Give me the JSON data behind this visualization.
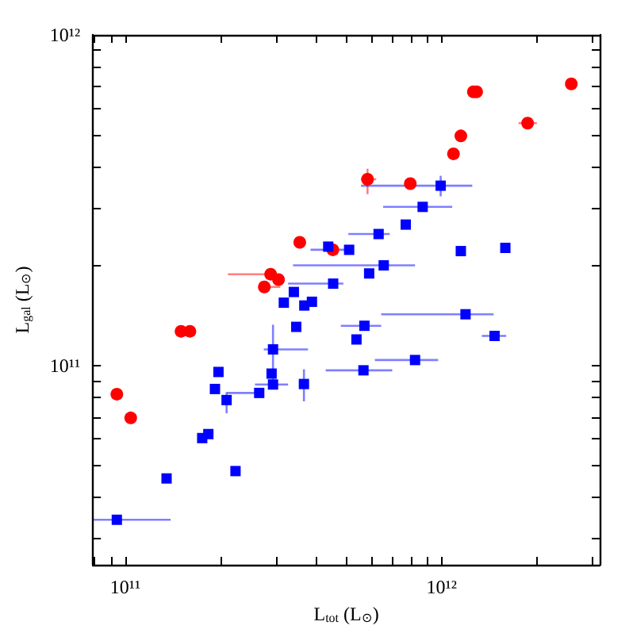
{
  "chart_data": {
    "type": "scatter",
    "xlabel": "L$_{tot}$ (L$_{⊙}$)",
    "ylabel": "L$_{gal}$ (L$_{⊙}$)",
    "log": "xy",
    "grid": false,
    "xlim": [
      79000000000.0,
      3160000000000.0
    ],
    "ylim": [
      25000000000.0,
      1000000000000.0
    ],
    "xticks": [
      {
        "value": 80000000000.0,
        "label": null
      },
      {
        "value": 90000000000.0,
        "label": null
      },
      {
        "value": 100000000000.0,
        "label": "10¹¹"
      },
      {
        "value": 200000000000.0,
        "label": null
      },
      {
        "value": 300000000000.0,
        "label": null
      },
      {
        "value": 400000000000.0,
        "label": null
      },
      {
        "value": 500000000000.0,
        "label": null
      },
      {
        "value": 600000000000.0,
        "label": null
      },
      {
        "value": 700000000000.0,
        "label": null
      },
      {
        "value": 800000000000.0,
        "label": null
      },
      {
        "value": 900000000000.0,
        "label": null
      },
      {
        "value": 1000000000000.0,
        "label": "10¹²"
      },
      {
        "value": 2000000000000.0,
        "label": null
      },
      {
        "value": 3000000000000.0,
        "label": null
      }
    ],
    "yticks": [
      {
        "value": 30000000000.0,
        "label": null
      },
      {
        "value": 40000000000.0,
        "label": null
      },
      {
        "value": 50000000000.0,
        "label": null
      },
      {
        "value": 60000000000.0,
        "label": null
      },
      {
        "value": 70000000000.0,
        "label": null
      },
      {
        "value": 80000000000.0,
        "label": null
      },
      {
        "value": 90000000000.0,
        "label": null
      },
      {
        "value": 100000000000.0,
        "label": "10¹¹"
      },
      {
        "value": 200000000000.0,
        "label": null
      },
      {
        "value": 300000000000.0,
        "label": null
      },
      {
        "value": 400000000000.0,
        "label": null
      },
      {
        "value": 500000000000.0,
        "label": null
      },
      {
        "value": 600000000000.0,
        "label": null
      },
      {
        "value": 700000000000.0,
        "label": null
      },
      {
        "value": 800000000000.0,
        "label": null
      },
      {
        "value": 900000000000.0,
        "label": null
      },
      {
        "value": 1000000000000.0,
        "label": "10¹²"
      }
    ],
    "series": [
      {
        "color": "#ff0000",
        "marker": "circle",
        "x": [
          94000000000.0,
          104000000000.0,
          150000000000.0,
          160000000000.0,
          275000000000.0,
          288000000000.0,
          305000000000.0,
          356000000000.0,
          453000000000.0,
          583000000000.0,
          796000000000.0,
          1090000000000.0,
          1150000000000.0,
          1260000000000.0,
          1290000000000.0,
          1870000000000.0,
          2570000000000.0
        ],
        "values": [
          82000000000.0,
          69500000000.0,
          127000000000.0,
          127000000000.0,
          173000000000.0,
          189000000000.0,
          182000000000.0,
          236000000000.0,
          224000000000.0,
          366000000000.0,
          355000000000.0,
          437000000000.0,
          495000000000.0,
          673000000000.0,
          673000000000.0,
          541000000000.0,
          711000000000.0
        ],
        "xerrors": [
          null,
          null,
          null,
          null,
          [
            275000000000.0,
            309000000000.0
          ],
          [
            211000000000.0,
            288000000000.0
          ],
          null,
          null,
          null,
          [
            556000000000.0,
            621000000000.0
          ],
          null,
          null,
          null,
          null,
          null,
          [
            1750000000000.0,
            2000000000000.0
          ],
          null
        ],
        "errors": [
          null,
          null,
          null,
          null,
          null,
          null,
          null,
          null,
          null,
          [
            330000000000.0,
            394000000000.0
          ],
          null,
          null,
          null,
          null,
          null,
          null,
          null
        ]
      },
      {
        "color": "#0000ff",
        "marker": "square",
        "x": [
          94000000000.0,
          135000000000.0,
          175000000000.0,
          183000000000.0,
          223000000000.0,
          192000000000.0,
          197000000000.0,
          209000000000.0,
          265000000000.0,
          293000000000.0,
          290000000000.0,
          293000000000.0,
          367000000000.0,
          347000000000.0,
          317000000000.0,
          341000000000.0,
          368000000000.0,
          389000000000.0,
          454000000000.0,
          538000000000.0,
          438000000000.0,
          510000000000.0,
          632000000000.0,
          770000000000.0,
          871000000000.0,
          993000000000.0,
          1150000000000.0,
          1590000000000.0,
          656000000000.0,
          590000000000.0,
          1190000000000.0,
          570000000000.0,
          1470000000000.0,
          824000000000.0,
          566000000000.0
        ],
        "values": [
          34200000000.0,
          45600000000.0,
          60400000000.0,
          62100000000.0,
          48000000000.0,
          85000000000.0,
          95700000000.0,
          78700000000.0,
          82700000000.0,
          87700000000.0,
          94600000000.0,
          112000000000.0,
          88000000000.0,
          131000000000.0,
          155000000000.0,
          167000000000.0,
          152000000000.0,
          156000000000.0,
          177000000000.0,
          120000000000.0,
          229000000000.0,
          224000000000.0,
          250000000000.0,
          267000000000.0,
          302000000000.0,
          350000000000.0,
          222000000000.0,
          227000000000.0,
          201000000000.0,
          190000000000.0,
          143000000000.0,
          132000000000.0,
          123000000000.0,
          104000000000.0,
          96800000000.0
        ],
        "xerrors": [
          [
            79000000000.0,
            139000000000.0
          ],
          null,
          null,
          null,
          null,
          null,
          null,
          null,
          [
            210000000000.0,
            265000000000.0
          ],
          [
            257000000000.0,
            327000000000.0
          ],
          null,
          [
            274000000000.0,
            378000000000.0
          ],
          null,
          null,
          null,
          null,
          null,
          null,
          [
            327000000000.0,
            489000000000.0
          ],
          null,
          null,
          [
            385000000000.0,
            510000000000.0
          ],
          [
            507000000000.0,
            685000000000.0
          ],
          null,
          [
            653000000000.0,
            1080000000000.0
          ],
          [
            556000000000.0,
            1250000000000.0
          ],
          null,
          null,
          [
            339000000000.0,
            824000000000.0
          ],
          null,
          [
            644000000000.0,
            1460000000000.0
          ],
          [
            480000000000.0,
            644000000000.0
          ],
          [
            1340000000000.0,
            1600000000000.0
          ],
          [
            615000000000.0,
            975000000000.0
          ],
          [
            430000000000.0,
            698000000000.0
          ]
        ],
        "errors": [
          null,
          null,
          null,
          null,
          null,
          null,
          null,
          [
            71800000000.0,
            83200000000.0
          ],
          null,
          null,
          null,
          [
            90600000000.0,
            133000000000.0
          ],
          [
            78000000000.0,
            97500000000.0
          ],
          null,
          null,
          null,
          null,
          null,
          null,
          null,
          null,
          null,
          null,
          null,
          null,
          [
            325000000000.0,
            375000000000.0
          ],
          null,
          null,
          null,
          null,
          null,
          null,
          null,
          null,
          null
        ]
      }
    ]
  }
}
